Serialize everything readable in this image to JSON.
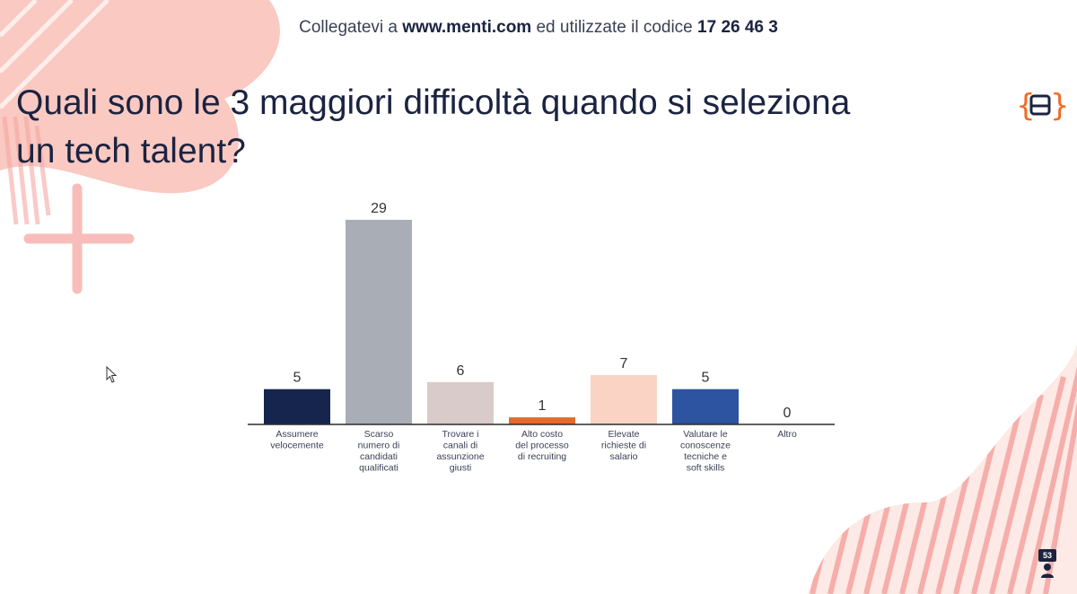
{
  "header": {
    "prefix": "Collegatevi a",
    "url": "www.menti.com",
    "middle": "ed utilizzate il codice",
    "code": "17 26 46 3"
  },
  "question": "Quali sono le 3 maggiori difficoltà quando si seleziona un tech talent?",
  "logo_icon": "mentimeter-logo-icon",
  "participants": {
    "count": "53",
    "icon": "person-icon"
  },
  "colors": {
    "title": "#1b2340",
    "accent_orange": "#f26b21",
    "decor_pink": "#f6a7a3"
  },
  "chart_data": {
    "type": "bar",
    "title": "",
    "xlabel": "",
    "ylabel": "",
    "ylim": [
      0,
      29
    ],
    "grid": false,
    "categories": [
      [
        "Assumere",
        "velocemente"
      ],
      [
        "Scarso",
        "numero di",
        "candidati",
        "qualificati"
      ],
      [
        "Trovare i",
        "canali di",
        "assunzione",
        "giusti"
      ],
      [
        "Alto costo",
        "del processo",
        "di recruiting"
      ],
      [
        "Elevate",
        "richieste di",
        "salario"
      ],
      [
        "Valutare le",
        "conoscenze",
        "tecniche e",
        "soft skills"
      ],
      [
        "Altro"
      ]
    ],
    "values": [
      5,
      29,
      6,
      1,
      7,
      5,
      0
    ],
    "colors": [
      "#15254d",
      "#a9adb6",
      "#d8cbc9",
      "#e36a28",
      "#fbd3c5",
      "#2c54a0",
      "#cccccc"
    ]
  }
}
